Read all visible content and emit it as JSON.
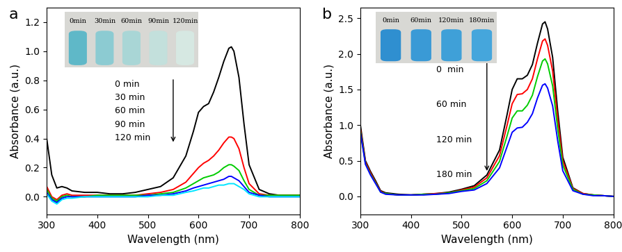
{
  "chart_data": [
    {
      "type": "line",
      "panel": "a",
      "x_label": "Wavelength (nm)",
      "y_label": "Absorbance (a.u.)",
      "x": [
        300,
        310,
        320,
        330,
        340,
        350,
        375,
        400,
        425,
        450,
        475,
        500,
        525,
        550,
        575,
        590,
        600,
        610,
        620,
        630,
        640,
        650,
        660,
        665,
        670,
        680,
        690,
        700,
        720,
        740,
        760,
        780,
        800
      ],
      "series": [
        {
          "color": "#000000",
          "values": [
            0.4,
            0.15,
            0.06,
            0.07,
            0.06,
            0.04,
            0.03,
            0.03,
            0.02,
            0.02,
            0.03,
            0.05,
            0.07,
            0.13,
            0.28,
            0.45,
            0.58,
            0.62,
            0.64,
            0.72,
            0.82,
            0.93,
            1.02,
            1.03,
            1.0,
            0.82,
            0.5,
            0.22,
            0.05,
            0.02,
            0.01,
            0.01,
            0.01
          ]
        },
        {
          "color": "#ff0000",
          "values": [
            0.07,
            0.0,
            -0.02,
            0.01,
            0.02,
            0.01,
            0.01,
            0.01,
            0.01,
            0.01,
            0.01,
            0.02,
            0.03,
            0.05,
            0.1,
            0.16,
            0.2,
            0.23,
            0.25,
            0.28,
            0.32,
            0.37,
            0.41,
            0.41,
            0.4,
            0.33,
            0.2,
            0.09,
            0.02,
            0.01,
            0.01,
            0.01,
            0.01
          ]
        },
        {
          "color": "#00cc00",
          "values": [
            0.05,
            -0.01,
            -0.03,
            0.0,
            0.01,
            0.0,
            0.0,
            0.01,
            0.01,
            0.01,
            0.01,
            0.01,
            0.02,
            0.03,
            0.06,
            0.09,
            0.11,
            0.13,
            0.14,
            0.15,
            0.17,
            0.2,
            0.22,
            0.22,
            0.21,
            0.18,
            0.11,
            0.05,
            0.01,
            0.01,
            0.01,
            0.01,
            0.01
          ]
        },
        {
          "color": "#0000ff",
          "values": [
            0.03,
            -0.02,
            -0.04,
            -0.01,
            0.0,
            0.0,
            0.0,
            0.0,
            0.0,
            0.0,
            0.0,
            0.01,
            0.01,
            0.02,
            0.04,
            0.06,
            0.07,
            0.08,
            0.09,
            0.1,
            0.11,
            0.12,
            0.14,
            0.14,
            0.13,
            0.11,
            0.07,
            0.03,
            0.01,
            0.0,
            0.0,
            0.0,
            0.0
          ]
        },
        {
          "color": "#00e5ff",
          "values": [
            0.02,
            -0.03,
            -0.05,
            -0.02,
            -0.01,
            -0.01,
            0.0,
            0.0,
            0.0,
            0.0,
            0.0,
            0.0,
            0.01,
            0.01,
            0.03,
            0.04,
            0.05,
            0.06,
            0.06,
            0.07,
            0.08,
            0.08,
            0.09,
            0.09,
            0.09,
            0.07,
            0.05,
            0.02,
            0.0,
            0.0,
            0.0,
            0.0,
            0.0
          ]
        }
      ],
      "annotations": [
        "0 min",
        "30 min",
        "60 min",
        "90 min",
        "120 min"
      ],
      "inset_labels": [
        "0min",
        "30min",
        "60min",
        "90min",
        "120min"
      ],
      "xlim": [
        300,
        800
      ],
      "xticks": [
        300,
        400,
        500,
        600,
        700,
        800
      ],
      "ylim": [
        -0.12,
        1.3
      ],
      "yticks": [
        {
          "value": 0.0,
          "label": "0.0"
        },
        {
          "value": 0.2,
          "label": "0.2"
        },
        {
          "value": 0.4,
          "label": "0.4"
        },
        {
          "value": 0.6,
          "label": "0.6"
        },
        {
          "value": 0.8,
          "label": "0.8"
        },
        {
          "value": 1.0,
          "label": "1.0"
        },
        {
          "value": 1.2,
          "label": "1.2"
        }
      ],
      "grid": false
    },
    {
      "type": "line",
      "panel": "b",
      "x_label": "Wavelength (nm)",
      "y_label": "Absorbance (a.u.)",
      "x": [
        300,
        310,
        320,
        330,
        340,
        350,
        375,
        400,
        425,
        450,
        475,
        500,
        525,
        550,
        575,
        590,
        600,
        610,
        620,
        630,
        640,
        650,
        660,
        665,
        670,
        680,
        690,
        700,
        720,
        740,
        760,
        780,
        800
      ],
      "series": [
        {
          "color": "#000000",
          "values": [
            1.0,
            0.5,
            0.35,
            0.22,
            0.08,
            0.05,
            0.03,
            0.02,
            0.03,
            0.04,
            0.06,
            0.1,
            0.15,
            0.3,
            0.65,
            1.15,
            1.5,
            1.65,
            1.65,
            1.7,
            1.85,
            2.15,
            2.42,
            2.45,
            2.35,
            1.95,
            1.2,
            0.55,
            0.12,
            0.04,
            0.02,
            0.01,
            0.0
          ]
        },
        {
          "color": "#ff0000",
          "values": [
            0.95,
            0.48,
            0.33,
            0.2,
            0.07,
            0.04,
            0.02,
            0.02,
            0.03,
            0.04,
            0.05,
            0.09,
            0.13,
            0.26,
            0.57,
            1.0,
            1.3,
            1.43,
            1.44,
            1.5,
            1.65,
            1.93,
            2.18,
            2.21,
            2.12,
            1.76,
            1.08,
            0.5,
            0.11,
            0.04,
            0.02,
            0.01,
            0.0
          ]
        },
        {
          "color": "#00cc00",
          "values": [
            0.92,
            0.46,
            0.31,
            0.19,
            0.06,
            0.04,
            0.02,
            0.02,
            0.03,
            0.03,
            0.05,
            0.08,
            0.11,
            0.22,
            0.49,
            0.85,
            1.1,
            1.2,
            1.2,
            1.28,
            1.42,
            1.68,
            1.9,
            1.93,
            1.86,
            1.55,
            0.95,
            0.44,
            0.1,
            0.03,
            0.02,
            0.01,
            0.0
          ]
        },
        {
          "color": "#0000ff",
          "values": [
            0.9,
            0.45,
            0.3,
            0.18,
            0.06,
            0.03,
            0.02,
            0.02,
            0.02,
            0.03,
            0.04,
            0.07,
            0.09,
            0.18,
            0.4,
            0.7,
            0.9,
            0.96,
            0.97,
            1.04,
            1.16,
            1.38,
            1.56,
            1.58,
            1.52,
            1.27,
            0.78,
            0.36,
            0.08,
            0.03,
            0.01,
            0.01,
            0.0
          ]
        }
      ],
      "annotations": [
        "0  min",
        "60 min",
        "120 min",
        "180 min"
      ],
      "inset_labels": [
        "0min",
        "60min",
        "120min",
        "180min"
      ],
      "xlim": [
        300,
        800
      ],
      "xticks": [
        300,
        400,
        500,
        600,
        700,
        800
      ],
      "ylim": [
        -0.25,
        2.65
      ],
      "yticks": [
        {
          "value": 0.0,
          "label": "0.0"
        },
        {
          "value": 0.5,
          "label": "0.5"
        },
        {
          "value": 1.0,
          "label": "1.0"
        },
        {
          "value": 1.5,
          "label": "1.5"
        },
        {
          "value": 2.0,
          "label": "2.0"
        },
        {
          "value": 2.5,
          "label": "2.5"
        }
      ],
      "grid": false
    }
  ]
}
